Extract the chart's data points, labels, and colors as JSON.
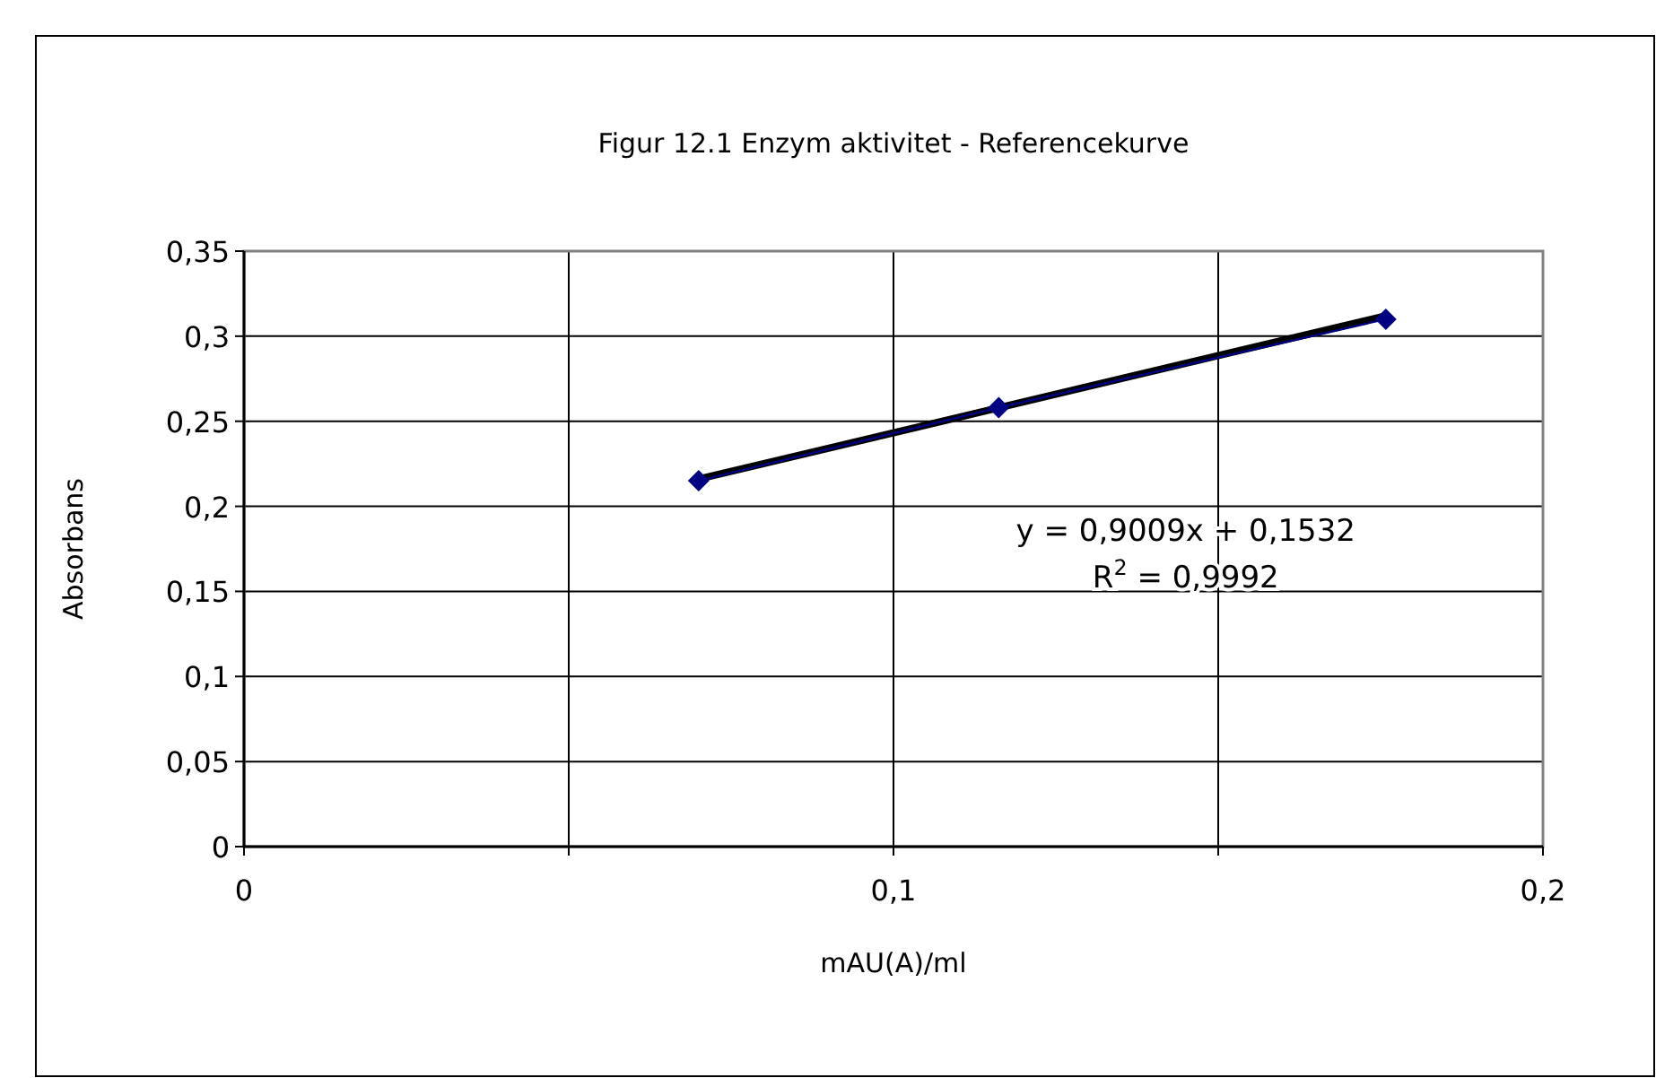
{
  "chart_data": {
    "type": "line",
    "title": "Figur 12.1 Enzym aktivitet - Referencekurve",
    "xlabel": "mAU(A)/ml",
    "ylabel": "Absorbans",
    "x": [
      0.07,
      0.1162,
      0.1758
    ],
    "series": [
      {
        "color": "#000080",
        "marker": "diamond",
        "values": [
          0.215,
          0.258,
          0.31
        ]
      },
      {
        "type": "line",
        "color": "#000000",
        "marker": "none",
        "x": [
          0.07,
          0.1758
        ],
        "values": [
          0.216,
          0.312
        ]
      }
    ],
    "xlim": [
      0,
      0.2
    ],
    "xticks": [
      0,
      {
        "value": 0.05,
        "label": null
      },
      {
        "value": 0.1,
        "label": "0,1"
      },
      {
        "value": 0.15,
        "label": null
      },
      {
        "value": 0.2,
        "label": "0,2"
      }
    ],
    "ylim": [
      0,
      0.35
    ],
    "yticks": [
      0,
      {
        "value": 0.05,
        "label": "0,05"
      },
      {
        "value": 0.1,
        "label": "0,1"
      },
      {
        "value": 0.15,
        "label": "0,15"
      },
      {
        "value": 0.2,
        "label": "0,2"
      },
      {
        "value": 0.25,
        "label": "0,25"
      },
      {
        "value": 0.3,
        "label": "0,3"
      },
      {
        "value": 0.35,
        "label": "0,35"
      }
    ],
    "grid": true,
    "annotations": [
      "y = 0,9009x + 0,1532",
      "R$^{2}$ = 0,9992"
    ]
  }
}
